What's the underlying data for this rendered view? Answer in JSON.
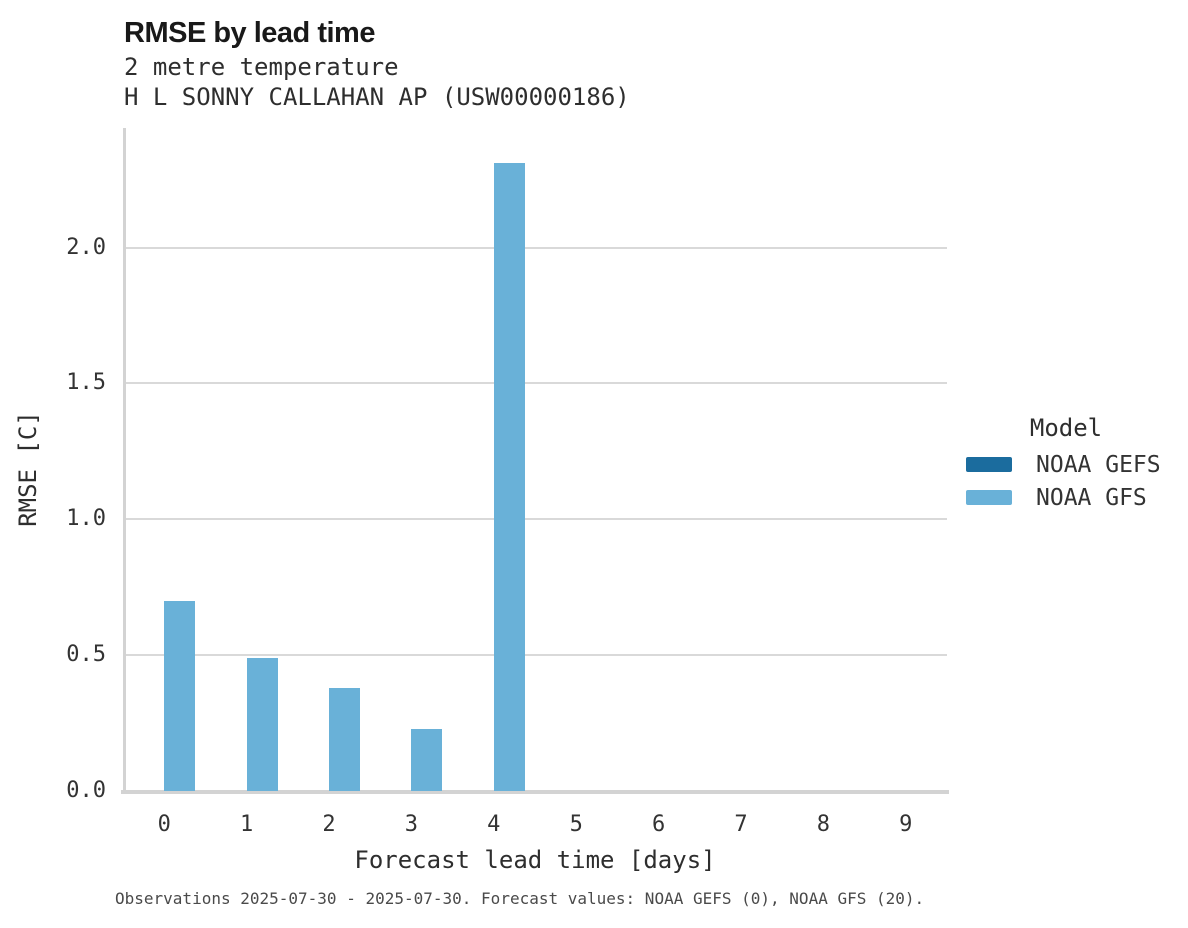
{
  "header": {
    "title": "RMSE by lead time",
    "subtitle_line1": "2 metre temperature",
    "subtitle_line2": "H L SONNY CALLAHAN AP (USW00000186)"
  },
  "axes": {
    "x": {
      "label": "Forecast lead time [days]",
      "tick_labels": [
        "0",
        "1",
        "2",
        "3",
        "4",
        "5",
        "6",
        "7",
        "8",
        "9"
      ]
    },
    "y": {
      "label": "RMSE [C]",
      "ticks": [
        0,
        0.5,
        1.0,
        1.5,
        2.0
      ],
      "tick_labels": [
        "0.0",
        "0.5",
        "1.0",
        "1.5",
        "2.0"
      ]
    }
  },
  "legend": {
    "title": "Model",
    "entries": [
      {
        "label": "NOAA GEFS",
        "color": "#1b6c9e"
      },
      {
        "label": "NOAA GFS",
        "color": "#69b1d8"
      }
    ]
  },
  "footer": {
    "caption": "Observations 2025-07-30 - 2025-07-30. Forecast values: NOAA GEFS (0), NOAA GFS (20)."
  },
  "colors": {
    "grid": "#d9d9d9",
    "spine": "#d3d3d3",
    "gefs_blue": "#1b6c9e",
    "gfs_blue": "#69b1d8",
    "title_text": "#191919",
    "body_text": "#2e2e2e",
    "caption_text": "#4a4a4a"
  },
  "chart_data": {
    "type": "bar",
    "title": "RMSE by lead time",
    "subtitle": [
      "2 metre temperature",
      "H L SONNY CALLAHAN AP (USW00000186)"
    ],
    "categories": [
      0,
      1,
      2,
      3,
      4,
      5,
      6,
      7,
      8,
      9
    ],
    "series": [
      {
        "name": "NOAA GEFS",
        "color": "#1b6c9e",
        "values": [
          null,
          null,
          null,
          null,
          null,
          null,
          null,
          null,
          null,
          null
        ]
      },
      {
        "name": "NOAA GFS",
        "color": "#69b1d8",
        "values": [
          0.7,
          0.49,
          0.38,
          0.23,
          2.31,
          null,
          null,
          null,
          null,
          null
        ]
      }
    ],
    "xlabel": "Forecast lead time [days]",
    "ylabel": "RMSE [C]",
    "ylim": [
      0,
      2.44
    ],
    "yticks": [
      0,
      0.5,
      1.0,
      1.5,
      2.0
    ],
    "grid": "horizontal-only",
    "legend_title": "Model",
    "legend_position": "right",
    "caption": "Observations 2025-07-30 - 2025-07-30. Forecast values: NOAA GEFS (0), NOAA GFS (20)."
  }
}
